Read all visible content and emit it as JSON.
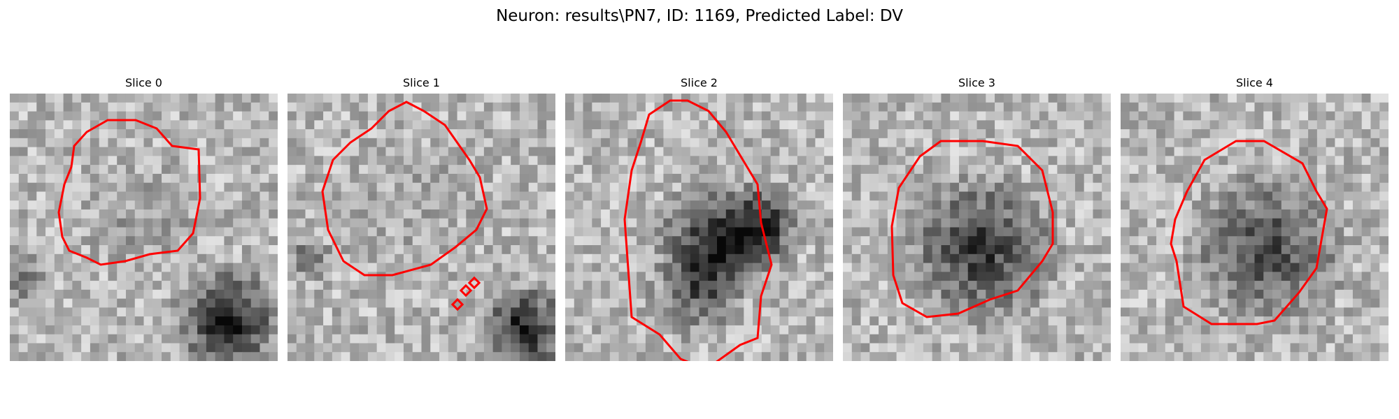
{
  "figure": {
    "suptitle": "Neuron: results\\PN7, ID: 1169, Predicted Label: DV",
    "contour_color": "#ff0000"
  },
  "panels": [
    {
      "title": "Slice 0"
    },
    {
      "title": "Slice 1"
    },
    {
      "title": "Slice 2"
    },
    {
      "title": "Slice 3"
    },
    {
      "title": "Slice 4"
    }
  ]
}
